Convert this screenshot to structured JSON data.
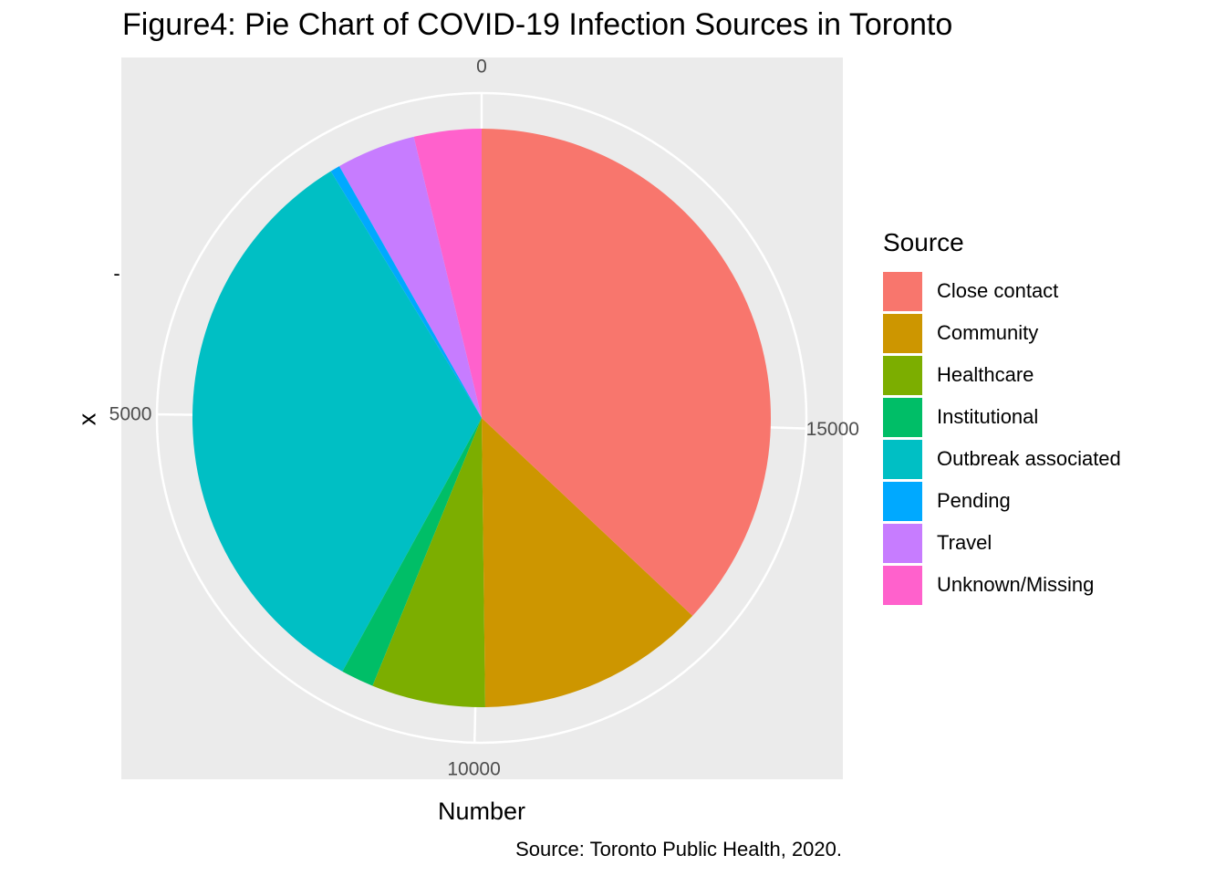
{
  "chart_data": {
    "type": "pie",
    "title": "Figure4: Pie Chart of COVID-19 Infection Sources in Toronto",
    "xlabel": "Number",
    "ylabel": "x",
    "caption": "Source: Toronto Public Health, 2020.",
    "legend_title": "Source",
    "legend_position": "right",
    "categories": [
      "Close contact",
      "Community",
      "Healthcare",
      "Institutional",
      "Outbreak associated",
      "Pending",
      "Travel",
      "Unknown/Missing"
    ],
    "values": [
      7450,
      2580,
      1280,
      370,
      6700,
      110,
      890,
      760
    ],
    "colors": [
      "#F8766D",
      "#CD9600",
      "#7CAE00",
      "#00BE67",
      "#00BFC4",
      "#00A9FF",
      "#C77CFF",
      "#FF61CC"
    ],
    "total": 20140,
    "theta_ticks": [
      "0",
      "5000",
      "10000",
      "15000"
    ],
    "theta_tick_values": [
      0,
      5000,
      10000,
      15000
    ],
    "y_tick": "-",
    "panel_background": "#EBEBEB",
    "grid": true
  }
}
